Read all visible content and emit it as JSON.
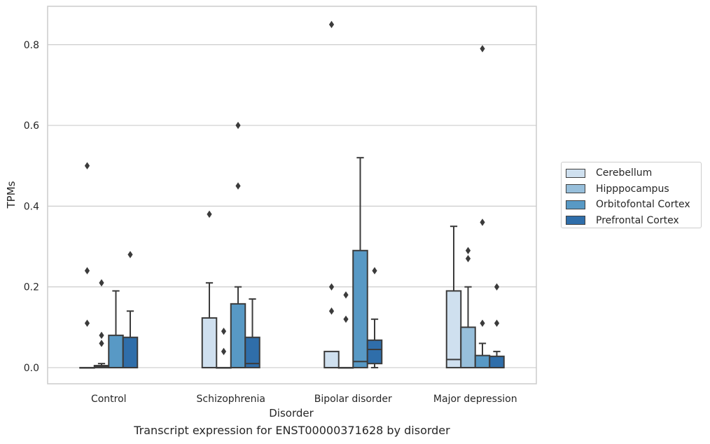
{
  "chart_data": {
    "type": "box",
    "xlabel": "Disorder",
    "ylabel": "TPMs",
    "caption": "Transcript expression for ENST00000371628 by disorder",
    "ylim": [
      -0.04,
      0.895
    ],
    "yticks": [
      "0.0",
      "0.2",
      "0.4",
      "0.6",
      "0.8"
    ],
    "grid": "horizontal",
    "legend_position": "right",
    "categories": [
      "Control",
      "Schizophrenia",
      "Bipolar disorder",
      "Major depression"
    ],
    "series": [
      {
        "name": "Cerebellum",
        "color": "#cfe0ef",
        "boxes": [
          {
            "q1": 0.0,
            "median": 0.0,
            "q3": 0.0,
            "whisker_low": 0.0,
            "whisker_high": 0.0,
            "outliers": [
              0.5,
              0.24,
              0.11
            ]
          },
          {
            "q1": 0.0,
            "median": 0.0,
            "q3": 0.123,
            "whisker_low": 0.0,
            "whisker_high": 0.21,
            "outliers": [
              0.38
            ]
          },
          {
            "q1": 0.0,
            "median": 0.0,
            "q3": 0.04,
            "whisker_low": 0.0,
            "whisker_high": 0.04,
            "outliers": [
              0.85,
              0.2,
              0.14
            ]
          },
          {
            "q1": 0.0,
            "median": 0.02,
            "q3": 0.19,
            "whisker_low": 0.0,
            "whisker_high": 0.35,
            "outliers": []
          }
        ]
      },
      {
        "name": "Hipppocampus",
        "color": "#97bfdb",
        "boxes": [
          {
            "q1": 0.0,
            "median": 0.003,
            "q3": 0.005,
            "whisker_low": 0.0,
            "whisker_high": 0.01,
            "outliers": [
              0.21,
              0.08,
              0.06
            ]
          },
          {
            "q1": 0.0,
            "median": 0.0,
            "q3": 0.0,
            "whisker_low": 0.0,
            "whisker_high": 0.0,
            "outliers": [
              0.09,
              0.04
            ]
          },
          {
            "q1": 0.0,
            "median": 0.0,
            "q3": 0.0,
            "whisker_low": 0.0,
            "whisker_high": 0.0,
            "outliers": [
              0.18,
              0.12
            ]
          },
          {
            "q1": 0.0,
            "median": 0.0,
            "q3": 0.1,
            "whisker_low": 0.0,
            "whisker_high": 0.2,
            "outliers": [
              0.29,
              0.27
            ]
          }
        ]
      },
      {
        "name": "Orbitofontal Cortex",
        "color": "#5899c5",
        "boxes": [
          {
            "q1": 0.0,
            "median": 0.0,
            "q3": 0.08,
            "whisker_low": 0.0,
            "whisker_high": 0.19,
            "outliers": []
          },
          {
            "q1": 0.0,
            "median": 0.0,
            "q3": 0.158,
            "whisker_low": 0.0,
            "whisker_high": 0.2,
            "outliers": [
              0.6,
              0.45
            ]
          },
          {
            "q1": 0.0,
            "median": 0.015,
            "q3": 0.29,
            "whisker_low": 0.0,
            "whisker_high": 0.52,
            "outliers": []
          },
          {
            "q1": 0.0,
            "median": 0.0,
            "q3": 0.03,
            "whisker_low": 0.0,
            "whisker_high": 0.06,
            "outliers": [
              0.79,
              0.36,
              0.11
            ]
          }
        ]
      },
      {
        "name": "Prefrontal Cortex",
        "color": "#2f6eaa",
        "boxes": [
          {
            "q1": 0.0,
            "median": 0.0,
            "q3": 0.075,
            "whisker_low": 0.0,
            "whisker_high": 0.14,
            "outliers": [
              0.28
            ]
          },
          {
            "q1": 0.0,
            "median": 0.01,
            "q3": 0.075,
            "whisker_low": 0.0,
            "whisker_high": 0.17,
            "outliers": []
          },
          {
            "q1": 0.01,
            "median": 0.045,
            "q3": 0.068,
            "whisker_low": 0.0,
            "whisker_high": 0.12,
            "outliers": [
              0.24
            ]
          },
          {
            "q1": 0.0,
            "median": 0.0,
            "q3": 0.028,
            "whisker_low": 0.0,
            "whisker_high": 0.04,
            "outliers": [
              0.2,
              0.11
            ]
          }
        ]
      }
    ]
  }
}
